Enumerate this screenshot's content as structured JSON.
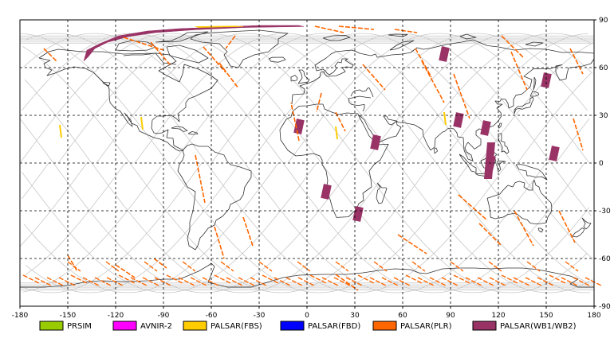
{
  "map": {
    "x_ticks": [
      "-180",
      "-150",
      "-120",
      "-90",
      "-60",
      "-30",
      "0",
      "30",
      "60",
      "90",
      "120",
      "150",
      "180"
    ],
    "y_ticks": [
      "90",
      "60",
      "30",
      "0",
      "-30",
      "-60",
      "-90"
    ],
    "lon_range": [
      -180,
      180
    ],
    "lat_range": [
      -90,
      90
    ],
    "grid": "dashed every 30 degrees",
    "colors": {
      "coastline": "#333333",
      "orbit_track": "#c8c8c8",
      "grid": "#000000",
      "frame": "#000000"
    }
  },
  "legend": [
    {
      "label": "PRSIM",
      "color": "#99cc00"
    },
    {
      "label": "AVNIR-2",
      "color": "#ff00ff"
    },
    {
      "label": "PALSAR(FBS)",
      "color": "#ffcc00"
    },
    {
      "label": "PALSAR(FBD)",
      "color": "#0000ff"
    },
    {
      "label": "PALSAR(PLR)",
      "color": "#ff6600"
    },
    {
      "label": "PALSAR(WB1/WB2)",
      "color": "#993366"
    }
  ],
  "wb_scenes": [
    {
      "lon": 86,
      "lat": 68.5
    },
    {
      "lon": 150,
      "lat": 52
    },
    {
      "lon": -5,
      "lat": 23
    },
    {
      "lon": 95,
      "lat": 27
    },
    {
      "lon": 112,
      "lat": 22
    },
    {
      "lon": 43,
      "lat": 13
    },
    {
      "lon": 155,
      "lat": 6
    },
    {
      "lon": 115,
      "lat": 0
    },
    {
      "lon": 12,
      "lat": -18
    },
    {
      "lon": 32,
      "lat": -32
    }
  ],
  "fbs_marks": [
    {
      "lon": -155,
      "lat": 20
    },
    {
      "lon": -104,
      "lat": 25
    },
    {
      "lon": 18,
      "lat": 19
    },
    {
      "lon": 86,
      "lat": 28
    }
  ]
}
